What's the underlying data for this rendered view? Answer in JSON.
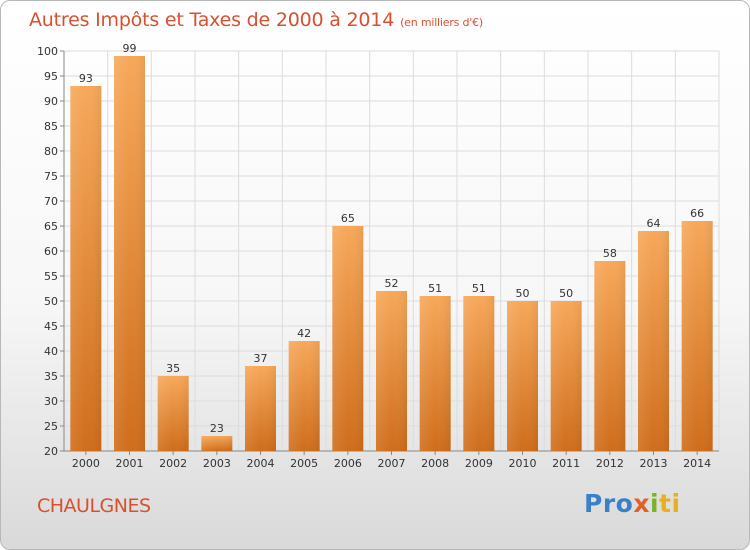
{
  "header": {
    "title": "Autres Impôts et Taxes de 2000 à 2014",
    "unit": "(en milliers d'€)"
  },
  "footer": {
    "commune": "CHAULGNES",
    "logo": {
      "p1": "Pro",
      "p2": "x",
      "p3": "i",
      "p4": "ti"
    }
  },
  "colors": {
    "bar_light": "#f5a455",
    "bar_dark": "#d0701e",
    "title": "#d95030"
  },
  "chart_data": {
    "type": "bar",
    "title": "Autres Impôts et Taxes de 2000 à 2014",
    "subtitle": "(en milliers d'€)",
    "xlabel": "",
    "ylabel": "",
    "categories": [
      "2000",
      "2001",
      "2002",
      "2003",
      "2004",
      "2005",
      "2006",
      "2007",
      "2008",
      "2009",
      "2010",
      "2011",
      "2012",
      "2013",
      "2014"
    ],
    "values": [
      93,
      99,
      35,
      23,
      37,
      42,
      65,
      52,
      51,
      51,
      50,
      50,
      58,
      64,
      66
    ],
    "ylim": [
      20,
      100
    ],
    "yticks": [
      20,
      25,
      30,
      35,
      40,
      45,
      50,
      55,
      60,
      65,
      70,
      75,
      80,
      85,
      90,
      95,
      100
    ],
    "grid": true,
    "legend": "none"
  }
}
